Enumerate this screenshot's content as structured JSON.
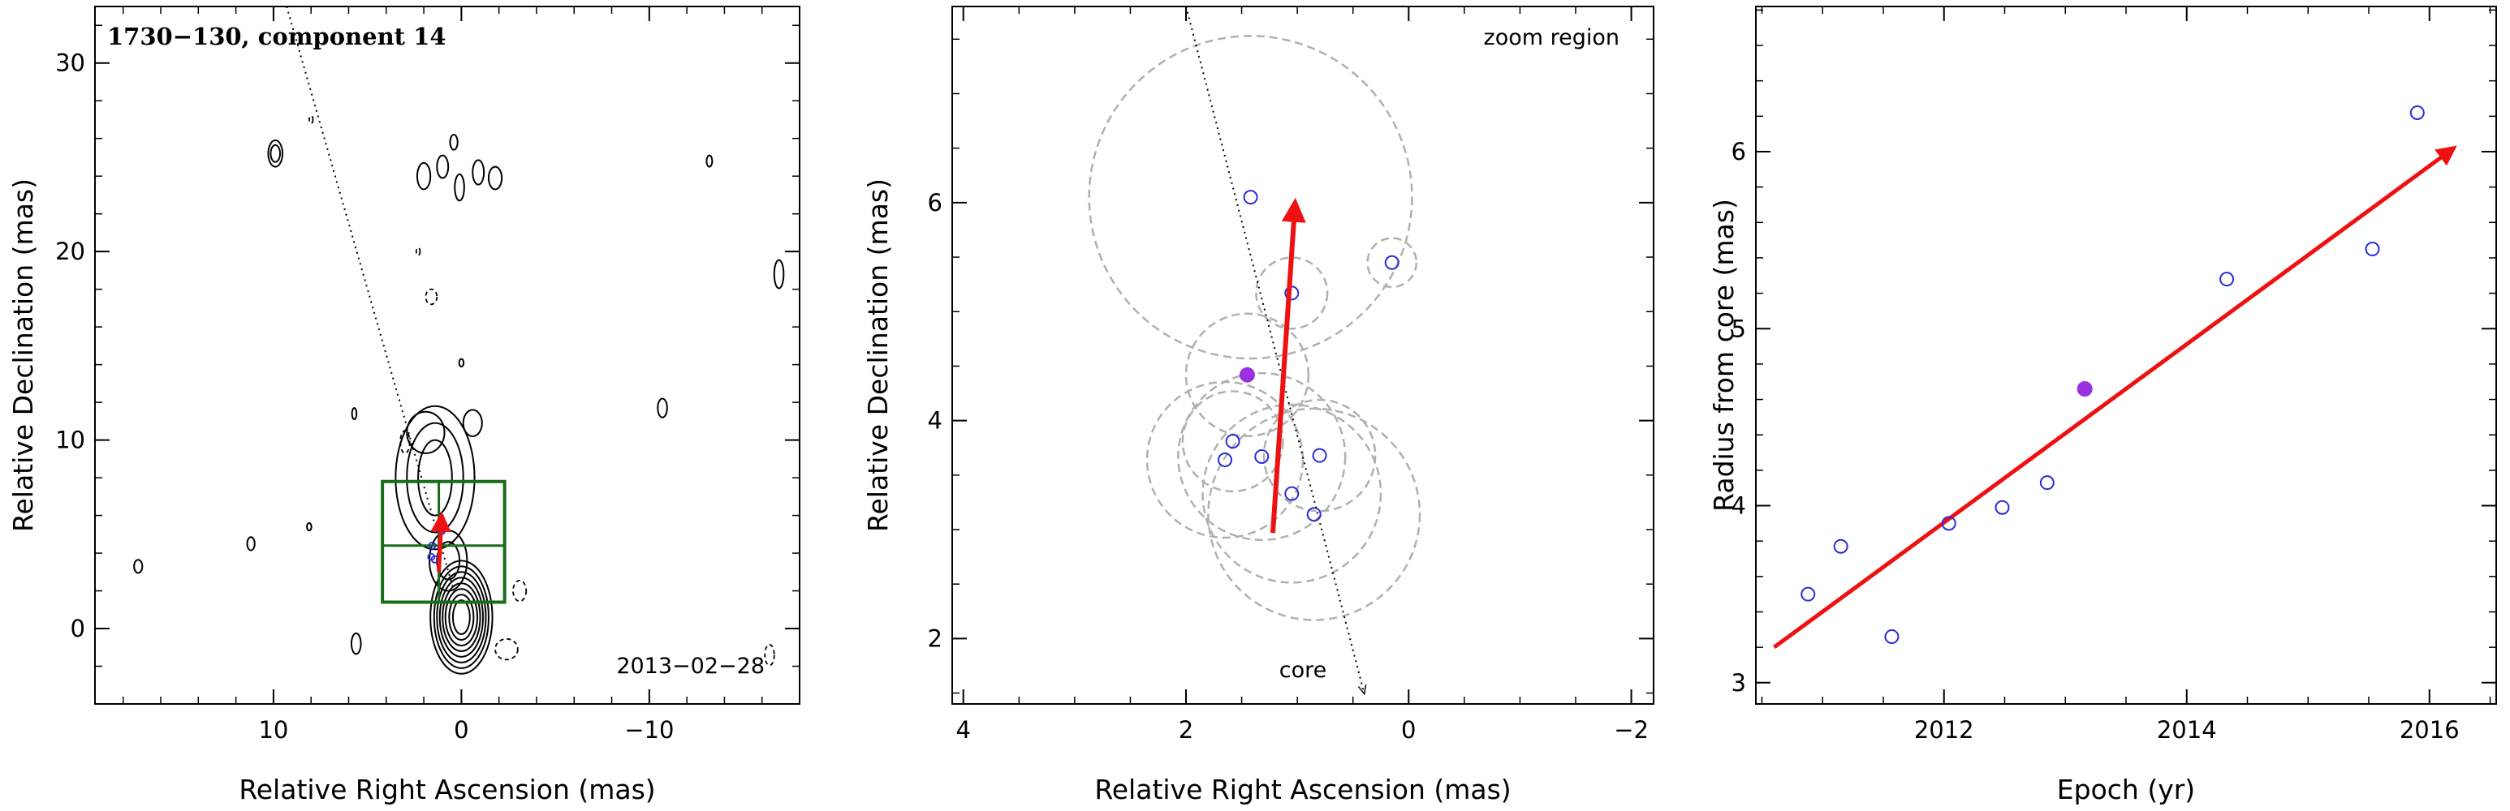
{
  "colors": {
    "contour": "#000000",
    "box": "#1a6b1a",
    "arrow": "#ee1111",
    "open_point": "#2b2bdd",
    "filled_point": "#9b30e0",
    "circle": "#b0b0b0",
    "dotted": "#000000"
  },
  "chart_data": [
    {
      "type": "contour-map",
      "title": "1730−130, component 14",
      "date_label": "2013−02−28",
      "xlabel": "Relative Right Ascension (mas)",
      "ylabel": "Relative Declination (mas)",
      "xlim": [
        19.5,
        -18
      ],
      "ylim": [
        -4,
        33
      ],
      "xticks": [
        {
          "v": 10,
          "label": "10"
        },
        {
          "v": 0,
          "label": "0"
        },
        {
          "v": -10,
          "label": "−10"
        }
      ],
      "yticks": [
        {
          "v": 0,
          "label": "0"
        },
        {
          "v": 10,
          "label": "10"
        },
        {
          "v": 20,
          "label": "20"
        },
        {
          "v": 30,
          "label": "30"
        }
      ],
      "zoom_box": {
        "x": [
          4.2,
          -2.3
        ],
        "y": [
          1.4,
          7.8
        ]
      },
      "zoom_hline_y": 4.4,
      "zoom_vline_x": 1.2,
      "motion_arrow": {
        "from": [
          1.2,
          3.0
        ],
        "to": [
          1.05,
          6.0
        ]
      },
      "trajectory": {
        "from": [
          9.3,
          33
        ],
        "to": [
          0.4,
          2.0
        ]
      },
      "points": [
        [
          1.55,
          4.4
        ],
        [
          1.05,
          5.17
        ],
        [
          1.42,
          3.67
        ],
        [
          1.6,
          3.8
        ]
      ],
      "contours": [
        {
          "cx": 0.0,
          "cy": 0.6,
          "rx": [
            0.45,
            0.65,
            0.85,
            1.0,
            1.15,
            1.3,
            1.45,
            1.65
          ],
          "ry": [
            0.9,
            1.2,
            1.5,
            1.8,
            2.1,
            2.4,
            2.7,
            3.0
          ]
        },
        {
          "cx": 0.7,
          "cy": 3.6,
          "rx": [
            0.6,
            1.0
          ],
          "ry": [
            1.0,
            1.6
          ]
        },
        {
          "cx": 1.4,
          "cy": 8.0,
          "rx": [
            0.9,
            1.5,
            2.1
          ],
          "ry": [
            2.0,
            2.9,
            3.8
          ]
        },
        {
          "cx": 1.9,
          "cy": 10.4,
          "rx": [
            1.0
          ],
          "ry": [
            1.1
          ]
        },
        {
          "cx": -0.6,
          "cy": 10.9,
          "rx": [
            0.5
          ],
          "ry": [
            0.7
          ]
        },
        {
          "cx": 9.9,
          "cy": 25.2,
          "rx": [
            0.25,
            0.38
          ],
          "ry": [
            0.45,
            0.7
          ]
        },
        {
          "cx": 2.0,
          "cy": 24.0,
          "rx": [
            0.35
          ],
          "ry": [
            0.7
          ]
        },
        {
          "cx": 1.0,
          "cy": 24.5,
          "rx": [
            0.3
          ],
          "ry": [
            0.6
          ]
        },
        {
          "cx": 0.1,
          "cy": 23.4,
          "rx": [
            0.25
          ],
          "ry": [
            0.7
          ]
        },
        {
          "cx": -0.9,
          "cy": 24.2,
          "rx": [
            0.3
          ],
          "ry": [
            0.65
          ]
        },
        {
          "cx": -1.8,
          "cy": 23.9,
          "rx": [
            0.35
          ],
          "ry": [
            0.6
          ]
        },
        {
          "cx": 0.4,
          "cy": 25.8,
          "rx": [
            0.2
          ],
          "ry": [
            0.4
          ]
        },
        {
          "cx": -16.9,
          "cy": 18.8,
          "rx": [
            0.25
          ],
          "ry": [
            0.75
          ]
        },
        {
          "cx": 17.2,
          "cy": 3.3,
          "rx": [
            0.22
          ],
          "ry": [
            0.35
          ]
        },
        {
          "cx": 11.2,
          "cy": 4.5,
          "rx": [
            0.2
          ],
          "ry": [
            0.35
          ]
        },
        {
          "cx": -10.7,
          "cy": 11.7,
          "rx": [
            0.25
          ],
          "ry": [
            0.5
          ]
        },
        {
          "cx": -13.2,
          "cy": 24.8,
          "rx": [
            0.15
          ],
          "ry": [
            0.3
          ]
        },
        {
          "cx": 5.6,
          "cy": -0.8,
          "rx": [
            0.25
          ],
          "ry": [
            0.55
          ]
        },
        {
          "cx": 0.0,
          "cy": 14.1,
          "rx": [
            0.12
          ],
          "ry": [
            0.2
          ]
        },
        {
          "cx": 5.7,
          "cy": 11.4,
          "rx": [
            0.12
          ],
          "ry": [
            0.3
          ]
        },
        {
          "cx": 8.1,
          "cy": 5.4,
          "rx": [
            0.12
          ],
          "ry": [
            0.2
          ]
        }
      ],
      "dashed_contours": [
        {
          "cx": -3.1,
          "cy": 2.0,
          "rx": 0.35,
          "ry": 0.55
        },
        {
          "cx": -2.4,
          "cy": -1.1,
          "rx": 0.6,
          "ry": 0.55
        },
        {
          "cx": 1.6,
          "cy": 17.6,
          "rx": 0.3,
          "ry": 0.4
        },
        {
          "cx": 2.3,
          "cy": 20.0,
          "rx": 0.1,
          "ry": 0.2
        },
        {
          "cx": 3.0,
          "cy": 9.9,
          "rx": 0.25,
          "ry": 0.6
        },
        {
          "cx": -16.4,
          "cy": -1.4,
          "rx": 0.25,
          "ry": 0.55
        },
        {
          "cx": 8.0,
          "cy": 27.0,
          "rx": 0.1,
          "ry": 0.2
        }
      ]
    },
    {
      "type": "scatter",
      "corner_label": "zoom region",
      "core_label": "core",
      "xlabel": "Relative Right Ascension (mas)",
      "ylabel": "Relative Declination (mas)",
      "xlim": [
        4.1,
        -2.2
      ],
      "ylim": [
        1.4,
        7.8
      ],
      "xticks": [
        {
          "v": 4,
          "label": "4"
        },
        {
          "v": 2,
          "label": "2"
        },
        {
          "v": 0,
          "label": "0"
        },
        {
          "v": -2,
          "label": "−2"
        }
      ],
      "yticks": [
        {
          "v": 2,
          "label": "2"
        },
        {
          "v": 4,
          "label": "4"
        },
        {
          "v": 6,
          "label": "6"
        }
      ],
      "open_points": [
        {
          "x": 1.42,
          "y": 6.05,
          "r": 1.45
        },
        {
          "x": 1.05,
          "y": 5.17,
          "r": 0.32
        },
        {
          "x": 0.15,
          "y": 5.45,
          "r": 0.22
        },
        {
          "x": 1.58,
          "y": 3.81,
          "r": 0.45
        },
        {
          "x": 1.65,
          "y": 3.64,
          "r": 0.7
        },
        {
          "x": 1.32,
          "y": 3.67,
          "r": 0.75
        },
        {
          "x": 0.8,
          "y": 3.68,
          "r": 0.5
        },
        {
          "x": 1.05,
          "y": 3.33,
          "r": 0.8
        },
        {
          "x": 0.85,
          "y": 3.14,
          "r": 0.95
        }
      ],
      "filled_point": {
        "x": 1.45,
        "y": 4.42,
        "r": 0.55
      },
      "motion_arrow": {
        "from": [
          1.22,
          2.97
        ],
        "to": [
          1.02,
          6.0
        ]
      },
      "trajectory": {
        "from": [
          2.0,
          7.8
        ],
        "to": [
          0.4,
          1.5
        ]
      }
    },
    {
      "type": "scatter",
      "xlabel": "Epoch (yr)",
      "ylabel": "Radius from core (mas)",
      "xlim": [
        2010.45,
        2016.55
      ],
      "ylim": [
        2.88,
        6.82
      ],
      "xticks": [
        {
          "v": 2012,
          "label": "2012"
        },
        {
          "v": 2014,
          "label": "2014"
        },
        {
          "v": 2016,
          "label": "2016"
        }
      ],
      "yticks": [
        {
          "v": 3,
          "label": "3"
        },
        {
          "v": 4,
          "label": "4"
        },
        {
          "v": 5,
          "label": "5"
        },
        {
          "v": 6,
          "label": "6"
        }
      ],
      "open_points": [
        {
          "x": 2010.88,
          "y": 3.5
        },
        {
          "x": 2011.15,
          "y": 3.77
        },
        {
          "x": 2011.57,
          "y": 3.26
        },
        {
          "x": 2012.04,
          "y": 3.9
        },
        {
          "x": 2012.48,
          "y": 3.99
        },
        {
          "x": 2012.85,
          "y": 4.13
        },
        {
          "x": 2014.33,
          "y": 5.28
        },
        {
          "x": 2015.53,
          "y": 5.45
        },
        {
          "x": 2015.9,
          "y": 6.22
        }
      ],
      "filled_points": [
        {
          "x": 2013.16,
          "y": 4.66
        }
      ],
      "fit_arrow": {
        "from": [
          2010.6,
          3.2
        ],
        "to": [
          2016.2,
          6.02
        ]
      }
    }
  ]
}
